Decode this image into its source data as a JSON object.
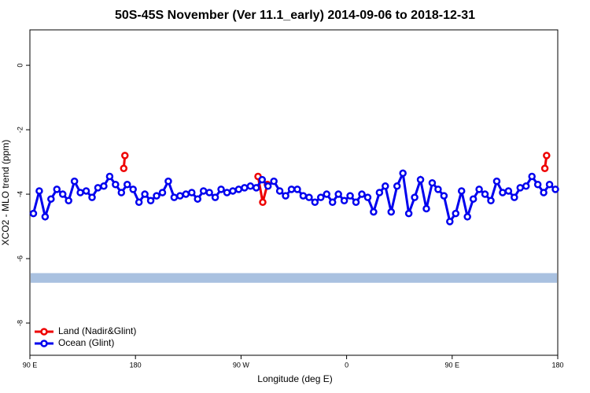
{
  "chart_data": {
    "type": "line",
    "title": "50S-45S November (Ver 11.1_early)   2014-09-06 to 2018-12-31",
    "xlabel": "Longitude (deg E)",
    "ylabel": "XCO2 - MLO trend (ppm)",
    "xlim": [
      90,
      540
    ],
    "ylim": [
      -9,
      1.1
    ],
    "xticks": [
      {
        "value": 90,
        "label": "90 E"
      },
      {
        "value": 180,
        "label": "180"
      },
      {
        "value": 270,
        "label": "90 W"
      },
      {
        "value": 360,
        "label": "0"
      },
      {
        "value": 450,
        "label": "90 E"
      },
      {
        "value": 540,
        "label": "180"
      }
    ],
    "yticks": [
      0,
      -2,
      -4,
      -6,
      -8
    ],
    "band": {
      "range": [
        -6.75,
        -6.45
      ],
      "color": "#a9c1e0"
    },
    "legend": "bottom-left",
    "series": [
      {
        "name": "Land (Nadir&Glint)",
        "color": "#ee0000",
        "x": [
          170,
          171,
          null,
          284.5,
          288.5,
          292.5,
          null,
          529,
          530.5
        ],
        "values": [
          -3.2,
          -2.8,
          null,
          -3.45,
          -4.25,
          -3.7,
          null,
          -3.2,
          -2.8
        ]
      },
      {
        "name": "Ocean (Glint)",
        "color": "#0000ee",
        "x": [
          93,
          98,
          103,
          108,
          113,
          118,
          123,
          128,
          133,
          138,
          143,
          148,
          153,
          158,
          163,
          168,
          173,
          178,
          183,
          188,
          193,
          198,
          203,
          208,
          213,
          218,
          223,
          228,
          233,
          238,
          243,
          248,
          253,
          258,
          263,
          268,
          273,
          278,
          283,
          288,
          293,
          298,
          303,
          308,
          313,
          318,
          323,
          328,
          333,
          338,
          343,
          348,
          353,
          358,
          363,
          368,
          373,
          378,
          383,
          388,
          393,
          398,
          403,
          408,
          413,
          418,
          423,
          428,
          433,
          438,
          443,
          448,
          453,
          458,
          463,
          468,
          473,
          478,
          483,
          488,
          493,
          498,
          503,
          508,
          513,
          518,
          523,
          528,
          533,
          538
        ],
        "values": [
          -4.6,
          -3.9,
          -4.7,
          -4.15,
          -3.85,
          -4.0,
          -4.2,
          -3.6,
          -3.95,
          -3.9,
          -4.1,
          -3.8,
          -3.75,
          -3.45,
          -3.7,
          -3.95,
          -3.7,
          -3.85,
          -4.25,
          -4.0,
          -4.2,
          -4.05,
          -3.95,
          -3.6,
          -4.1,
          -4.05,
          -4.0,
          -3.95,
          -4.15,
          -3.9,
          -3.95,
          -4.1,
          -3.85,
          -3.95,
          -3.9,
          -3.85,
          -3.8,
          -3.75,
          -3.8,
          -3.55,
          -3.75,
          -3.6,
          -3.9,
          -4.05,
          -3.85,
          -3.85,
          -4.05,
          -4.1,
          -4.25,
          -4.1,
          -4.0,
          -4.25,
          -4.0,
          -4.2,
          -4.05,
          -4.25,
          -4.0,
          -4.1,
          -4.55,
          -3.95,
          -3.75,
          -4.55,
          -3.75,
          -3.35,
          -4.6,
          -4.1,
          -3.55,
          -4.45,
          -3.65,
          -3.85,
          -4.05,
          -4.85,
          -4.6,
          -3.9,
          -4.7,
          -4.15,
          -3.85,
          -4.0,
          -4.2,
          -3.6,
          -3.95,
          -3.9,
          -4.1,
          -3.8,
          -3.75,
          -3.45,
          -3.7,
          -3.95,
          -3.7,
          -3.85
        ]
      }
    ]
  }
}
